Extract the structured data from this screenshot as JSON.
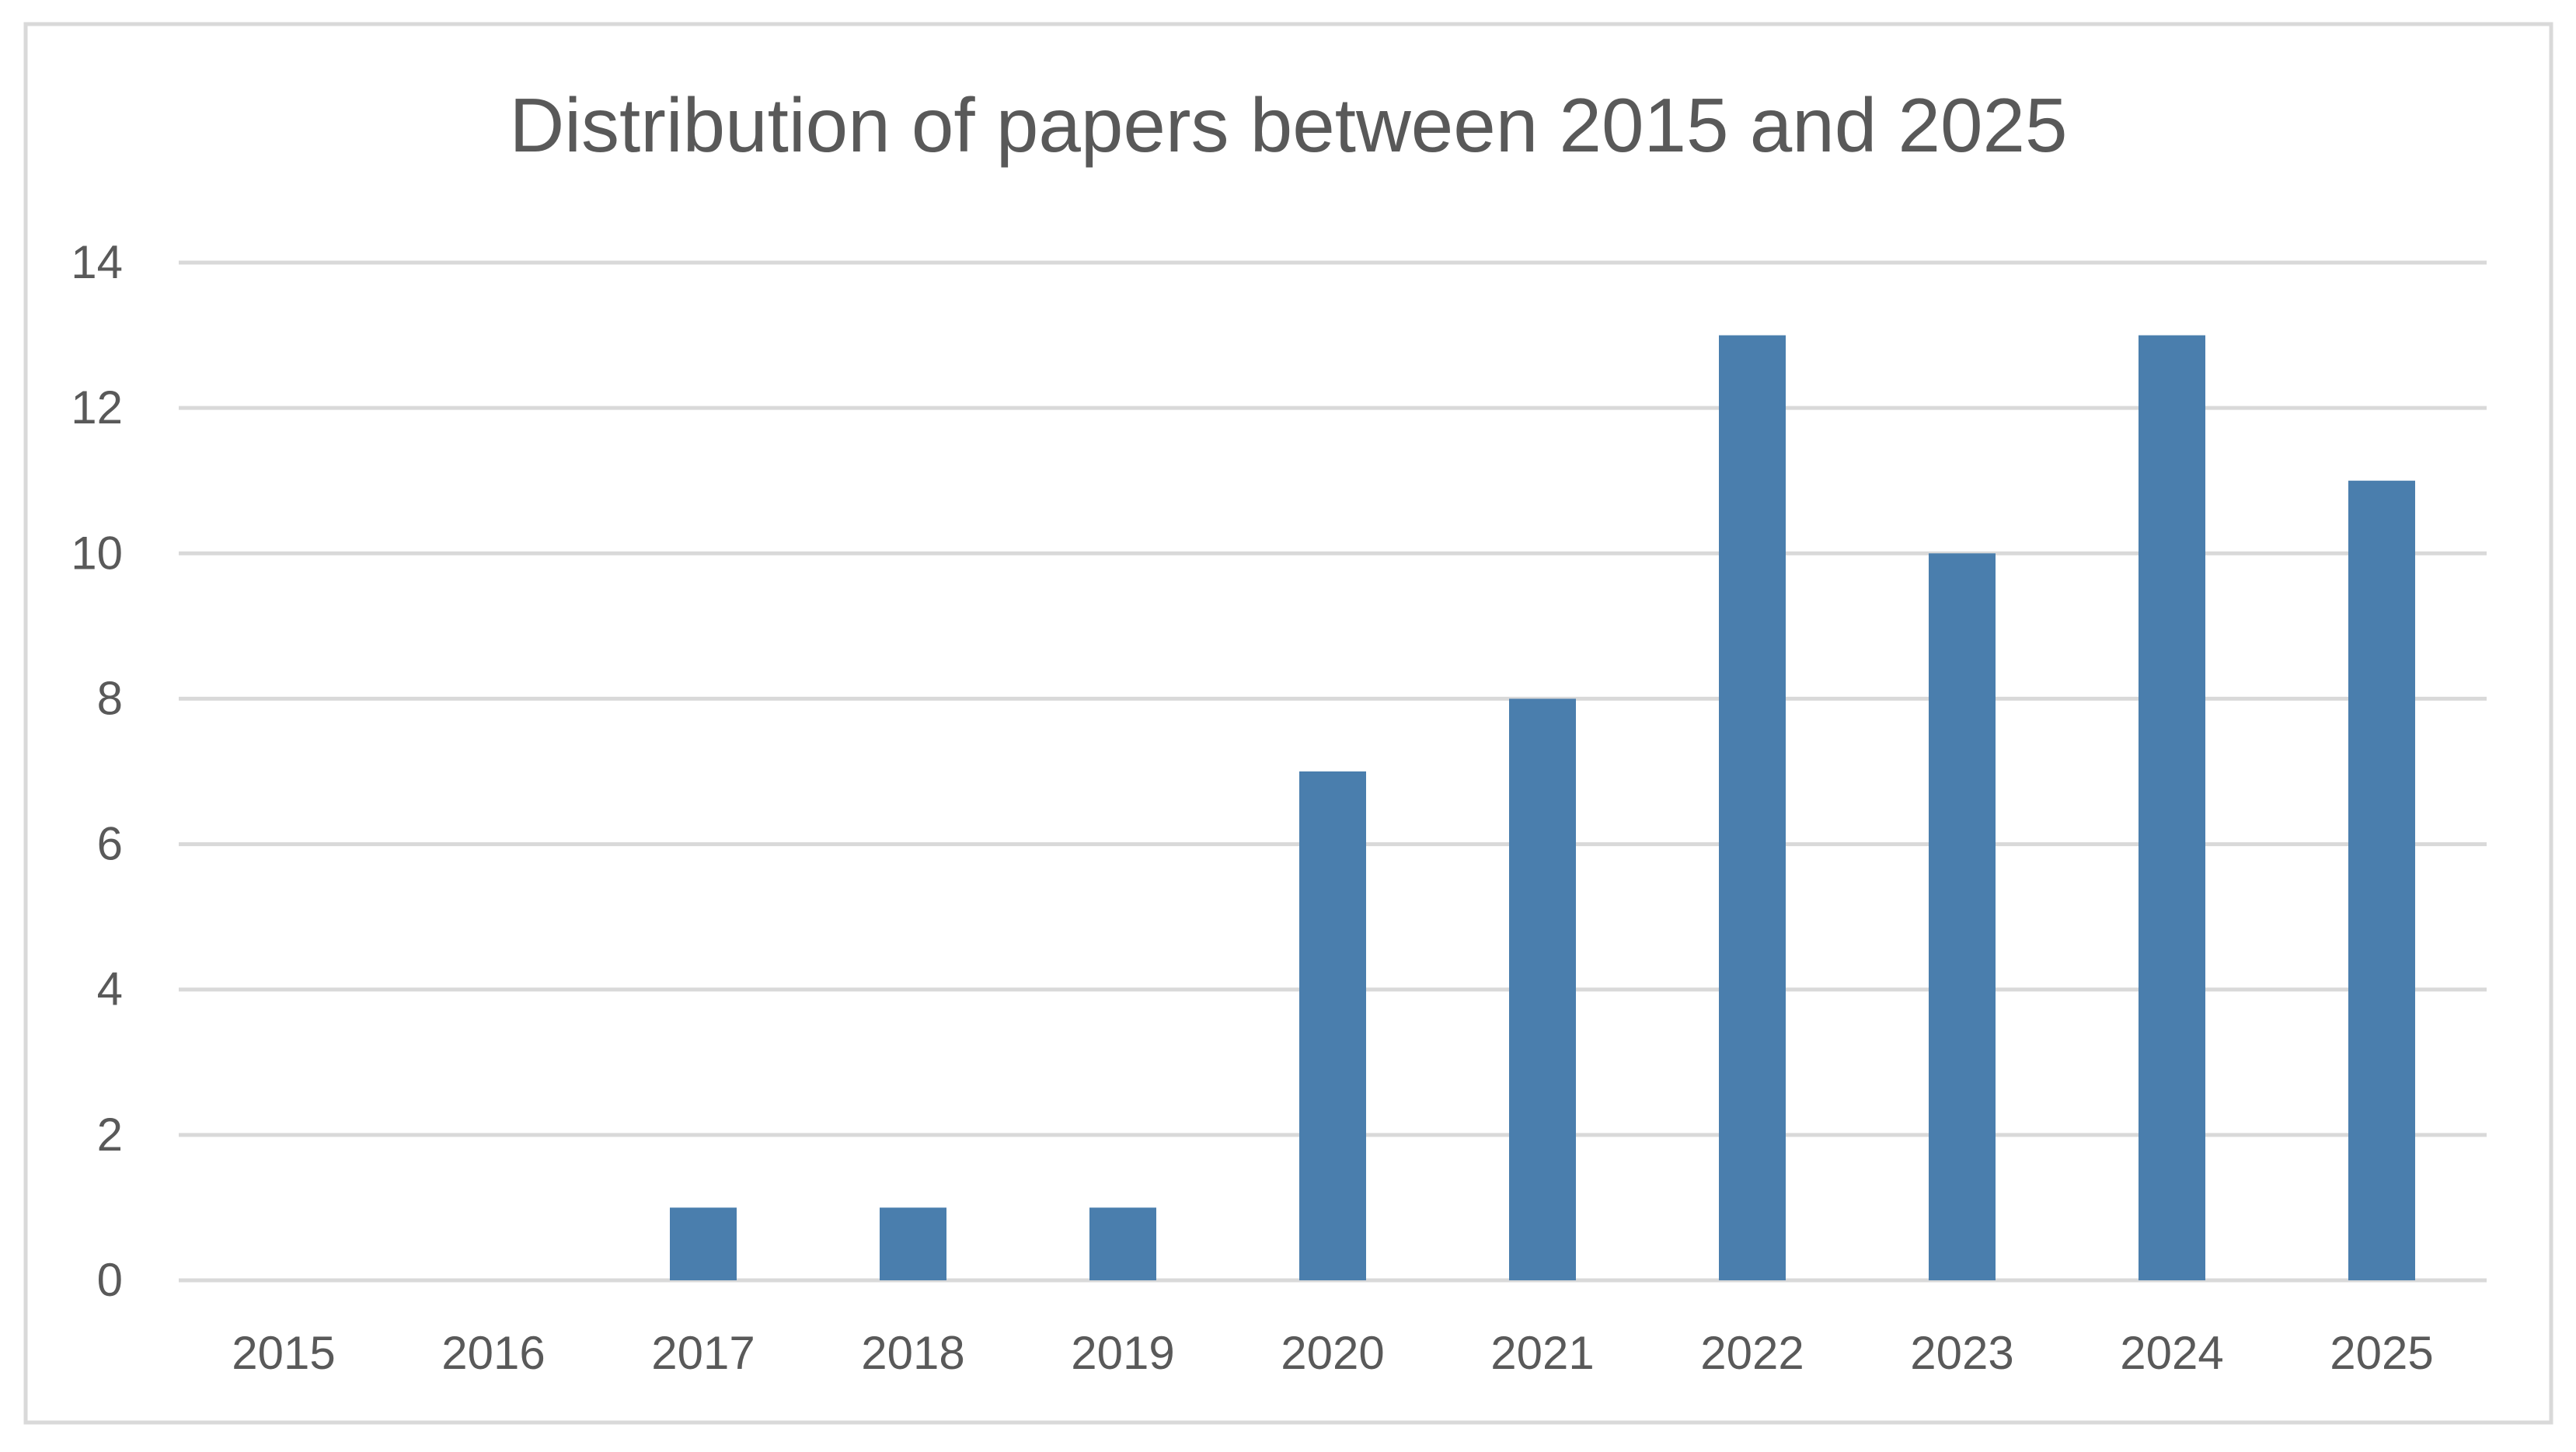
{
  "chart_data": {
    "type": "bar",
    "title": "Distribution of papers between 2015 and 2025",
    "xlabel": "",
    "ylabel": "",
    "categories": [
      "2015",
      "2016",
      "2017",
      "2018",
      "2019",
      "2020",
      "2021",
      "2022",
      "2023",
      "2024",
      "2025"
    ],
    "values": [
      0,
      0,
      1,
      1,
      1,
      7,
      8,
      13,
      10,
      13,
      11
    ],
    "ylim": [
      0,
      14
    ],
    "yticks": [
      "0",
      "2",
      "4",
      "6",
      "8",
      "10",
      "12",
      "14"
    ],
    "grid": true,
    "legend": "none",
    "colors": {
      "bar": "#4a7ead",
      "grid": "#d9d9d9",
      "text": "#595959",
      "border": "#d9d9d9"
    }
  }
}
